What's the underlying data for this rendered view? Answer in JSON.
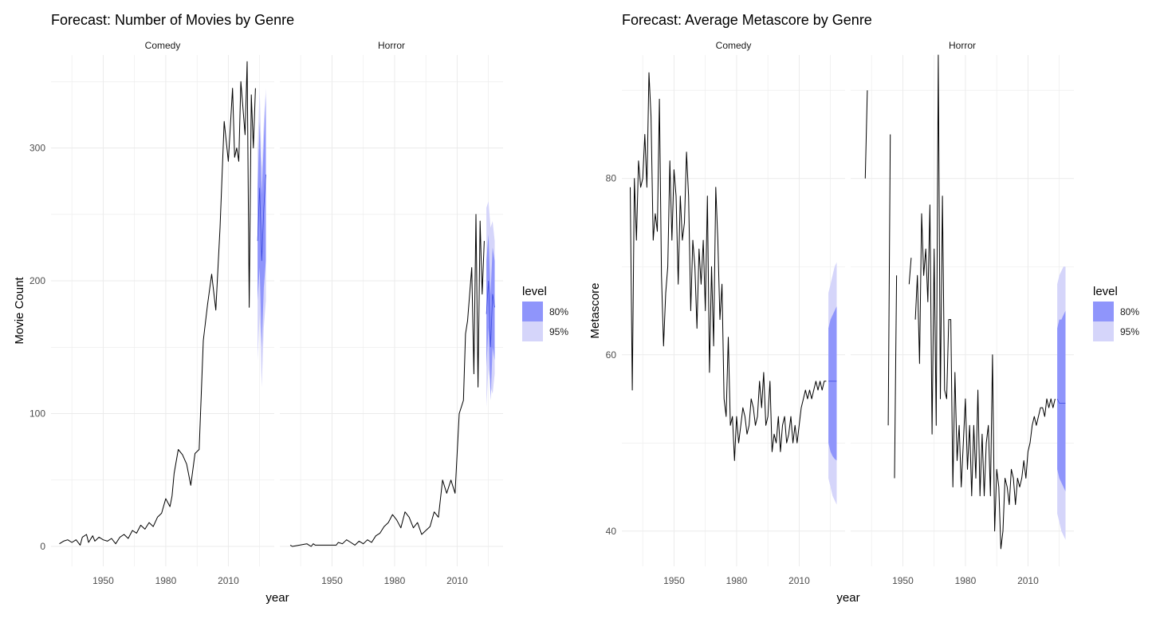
{
  "chart_data": [
    {
      "type": "line",
      "title": "Forecast: Number of Movies by Genre",
      "xlabel": "year",
      "ylabel": "Movie Count",
      "xlim": [
        1925,
        2032
      ],
      "ylim": [
        -15,
        370
      ],
      "x_ticks": [
        1950,
        1980,
        2010
      ],
      "x_tick_labels": [
        "1950",
        "1980",
        "2010"
      ],
      "y_ticks": [
        0,
        100,
        200,
        300
      ],
      "y_tick_labels": [
        "0",
        "100",
        "200",
        "300"
      ],
      "grid": true,
      "legend": {
        "title": "level",
        "placement": "right",
        "entries": [
          {
            "label": "80%",
            "color": "#8F95FB"
          },
          {
            "label": "95%",
            "color": "#D5D5FA"
          }
        ]
      },
      "panels": [
        {
          "strip": "Comedy",
          "series": [
            {
              "x": [
                1929,
                1931,
                1933,
                1935,
                1937,
                1939,
                1940,
                1942,
                1943,
                1945,
                1946,
                1948,
                1950,
                1952,
                1954,
                1956,
                1958,
                1960,
                1962,
                1964,
                1966,
                1968,
                1970,
                1972,
                1974,
                1976,
                1978,
                1980,
                1982,
                1983,
                1984,
                1986,
                1988,
                1990,
                1992,
                1994,
                1996,
                1998,
                2000,
                2002,
                2004,
                2006,
                2008,
                2010,
                2012,
                2013,
                2014,
                2015,
                2016,
                2018,
                2019,
                2020,
                2021,
                2022,
                2023
              ],
              "y": [
                2,
                4,
                5,
                3,
                5,
                1,
                7,
                9,
                3,
                8,
                4,
                7,
                5,
                4,
                6,
                2,
                7,
                9,
                6,
                12,
                10,
                16,
                13,
                18,
                15,
                22,
                25,
                36,
                30,
                38,
                55,
                73,
                69,
                62,
                46,
                70,
                73,
                155,
                182,
                205,
                178,
                240,
                320,
                290,
                345,
                293,
                300,
                290,
                350,
                310,
                365,
                180,
                340,
                300,
                345
              ]
            }
          ],
          "forecast": {
            "x": [
              2024,
              2025,
              2026,
              2027,
              2028
            ],
            "mean": [
              230,
              270,
              215,
              255,
              280
            ],
            "lo80": [
              185,
              210,
              150,
              195,
              215
            ],
            "hi80": [
              270,
              320,
              265,
              305,
              340
            ],
            "lo95": [
              140,
              175,
              120,
              165,
              185
            ],
            "hi95": [
              300,
              345,
              285,
              320,
              345
            ]
          }
        },
        {
          "strip": "Horror",
          "series": [
            {
              "x": [
                1930,
                1931,
                1938,
                1939,
                1940,
                1941,
                1942,
                1952,
                1953,
                1955,
                1957,
                1959,
                1961,
                1963,
                1965,
                1967,
                1969,
                1971,
                1973,
                1975,
                1977,
                1979,
                1981,
                1983,
                1985,
                1987,
                1989,
                1991,
                1993,
                1995,
                1997,
                1999,
                2001,
                2003,
                2005,
                2007,
                2009,
                2011,
                2013,
                2014,
                2015,
                2017,
                2018,
                2019,
                2020,
                2021,
                2022,
                2023
              ],
              "y": [
                1,
                0,
                2,
                1,
                0,
                2,
                1,
                1,
                3,
                2,
                5,
                3,
                1,
                4,
                2,
                5,
                3,
                8,
                10,
                15,
                18,
                24,
                20,
                14,
                26,
                22,
                14,
                18,
                9,
                12,
                15,
                26,
                22,
                50,
                40,
                50,
                40,
                100,
                110,
                160,
                170,
                210,
                130,
                250,
                120,
                245,
                190,
                230
              ],
              "connect_gaps": false
            }
          ],
          "forecast": {
            "x": [
              2024,
              2025,
              2026,
              2027,
              2028
            ],
            "mean": [
              175,
              200,
              150,
              190,
              180
            ],
            "lo80": [
              135,
              165,
              110,
              150,
              140
            ],
            "hi80": [
              215,
              235,
              190,
              225,
              215
            ],
            "lo95": [
              105,
              135,
              120,
              115,
              130
            ],
            "hi95": [
              255,
              260,
              240,
              245,
              230
            ]
          }
        }
      ]
    },
    {
      "type": "line",
      "title": "Forecast: Average Metascore by Genre",
      "xlabel": "year",
      "ylabel": "Metascore",
      "xlim": [
        1925,
        2032
      ],
      "ylim": [
        36,
        94
      ],
      "x_ticks": [
        1950,
        1980,
        2010
      ],
      "x_tick_labels": [
        "1950",
        "1980",
        "2010"
      ],
      "y_ticks": [
        40,
        60,
        80
      ],
      "y_tick_labels": [
        "40",
        "60",
        "80"
      ],
      "grid": true,
      "legend": {
        "title": "level",
        "placement": "right",
        "entries": [
          {
            "label": "80%",
            "color": "#8F95FB"
          },
          {
            "label": "95%",
            "color": "#D5D5FA"
          }
        ]
      },
      "panels": [
        {
          "strip": "Comedy",
          "series": [
            {
              "x": [
                1929,
                1930,
                1931,
                1932,
                1933,
                1934,
                1935,
                1936,
                1937,
                1938,
                1939,
                1940,
                1941,
                1942,
                1943,
                1944,
                1945,
                1946,
                1947,
                1948,
                1949,
                1950,
                1951,
                1952,
                1953,
                1954,
                1955,
                1956,
                1957,
                1958,
                1959,
                1960,
                1961,
                1962,
                1963,
                1964,
                1965,
                1966,
                1967,
                1968,
                1969,
                1970,
                1971,
                1972,
                1973,
                1974,
                1975,
                1976,
                1977,
                1978,
                1979,
                1980,
                1981,
                1982,
                1983,
                1984,
                1985,
                1986,
                1987,
                1988,
                1989,
                1990,
                1991,
                1992,
                1993,
                1994,
                1995,
                1996,
                1997,
                1998,
                1999,
                2000,
                2001,
                2002,
                2003,
                2004,
                2005,
                2006,
                2007,
                2008,
                2009,
                2010,
                2011,
                2012,
                2013,
                2014,
                2015,
                2016,
                2017,
                2018,
                2019,
                2020,
                2021,
                2022,
                2023
              ],
              "y": [
                79,
                56,
                80,
                73,
                82,
                79,
                80,
                85,
                79,
                92,
                87,
                73,
                76,
                74,
                89,
                69,
                61,
                67,
                70,
                82,
                73,
                81,
                78,
                68,
                78,
                73,
                75,
                83,
                78,
                65,
                73,
                70,
                63,
                72,
                68,
                73,
                65,
                78,
                58,
                70,
                61,
                79,
                73,
                64,
                68,
                55,
                53,
                62,
                52,
                53,
                48,
                53,
                50,
                52,
                54,
                53,
                51,
                52,
                55,
                54,
                52,
                53,
                57,
                54,
                58,
                52,
                53,
                57,
                49,
                51,
                50,
                53,
                49,
                52,
                53,
                50,
                51,
                53,
                50,
                52,
                50,
                52,
                54,
                55,
                56,
                55,
                56,
                55,
                56,
                57,
                56,
                57,
                56,
                57,
                57
              ]
            }
          ],
          "forecast": {
            "x": [
              2024,
              2025,
              2026,
              2027,
              2028
            ],
            "mean": [
              57,
              57,
              57,
              57,
              57
            ],
            "lo80": [
              50,
              49,
              48.5,
              48.2,
              48
            ],
            "hi80": [
              63,
              64,
              64.5,
              65,
              65.5
            ],
            "lo95": [
              46,
              45,
              44,
              43.5,
              43
            ],
            "hi95": [
              67,
              68,
              69,
              70,
              70.5
            ]
          }
        },
        {
          "strip": "Horror",
          "series": [
            {
              "x": [
                1932,
                1933,
                1934,
                1935,
                1943,
                1944,
                1945,
                1946,
                1947,
                1948,
                1953,
                1954,
                1955,
                1956,
                1957,
                1958,
                1959,
                1960,
                1961,
                1962,
                1963,
                1964,
                1965,
                1966,
                1967,
                1968,
                1969,
                1970,
                1971,
                1972,
                1973,
                1974,
                1975,
                1976,
                1977,
                1978,
                1979,
                1980,
                1981,
                1982,
                1983,
                1984,
                1985,
                1986,
                1987,
                1988,
                1989,
                1990,
                1991,
                1992,
                1993,
                1994,
                1995,
                1996,
                1997,
                1998,
                1999,
                2000,
                2001,
                2002,
                2003,
                2004,
                2005,
                2006,
                2007,
                2008,
                2009,
                2010,
                2011,
                2012,
                2013,
                2014,
                2015,
                2016,
                2017,
                2018,
                2019,
                2020,
                2021,
                2022,
                2023
              ],
              "y": [
                80,
                90,
                null,
                null,
                52,
                85,
                null,
                46,
                69,
                null,
                68,
                71,
                null,
                64,
                69,
                59,
                76,
                69,
                72,
                66,
                77,
                51,
                72,
                52,
                94,
                55,
                78,
                56,
                55,
                64,
                64,
                45,
                58,
                48,
                52,
                45,
                50,
                55,
                47,
                52,
                44,
                52,
                46,
                56,
                44,
                51,
                44,
                50,
                52,
                44,
                60,
                40,
                47,
                45,
                38,
                40,
                46,
                45,
                43,
                47,
                46,
                43,
                46,
                45,
                46,
                48,
                46,
                49,
                50,
                52,
                53,
                52,
                53,
                54,
                54,
                53,
                55,
                54,
                55,
                54,
                55
              ],
              "connect_gaps": false
            }
          ],
          "forecast": {
            "x": [
              2024,
              2025,
              2026,
              2027,
              2028
            ],
            "mean": [
              55,
              54.5,
              54.5,
              54.5,
              54.5
            ],
            "lo80": [
              47,
              46,
              45.5,
              45,
              44.5
            ],
            "hi80": [
              63,
              64,
              64,
              64.5,
              65
            ],
            "lo95": [
              42,
              41,
              40,
              39.5,
              39
            ],
            "hi95": [
              68,
              69,
              69.5,
              70,
              70
            ]
          }
        }
      ]
    }
  ]
}
